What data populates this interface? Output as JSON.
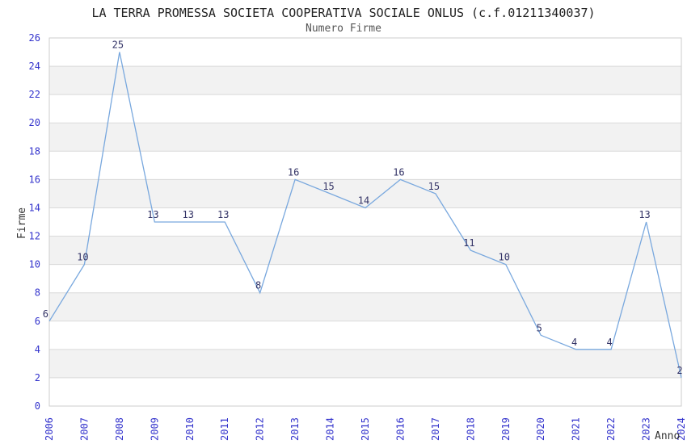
{
  "chart_data": {
    "type": "line",
    "title": "LA TERRA PROMESSA SOCIETA COOPERATIVA SOCIALE ONLUS (c.f.01211340037)",
    "subtitle": "Numero Firme",
    "xlabel": "Anno",
    "ylabel": "Firme",
    "categories": [
      "2006",
      "2007",
      "2008",
      "2009",
      "2010",
      "2011",
      "2012",
      "2013",
      "2014",
      "2015",
      "2016",
      "2017",
      "2018",
      "2019",
      "2020",
      "2021",
      "2022",
      "2023",
      "2024"
    ],
    "values": [
      6,
      10,
      25,
      13,
      13,
      13,
      8,
      16,
      15,
      14,
      16,
      15,
      11,
      10,
      5,
      4,
      4,
      13,
      2
    ],
    "yticks": [
      0,
      2,
      4,
      6,
      8,
      10,
      12,
      14,
      16,
      18,
      20,
      22,
      24,
      26
    ],
    "ylim": [
      0,
      26
    ],
    "grid": "horizontal",
    "banding": "alternating-2-unit-rows",
    "legend_position": "none",
    "markers": "none",
    "colors": {
      "line": "#79A8DE",
      "tick_labels": "#3333CC",
      "point_labels": "#333366",
      "band": "#F2F2F2",
      "gridline": "#D9D9D9",
      "border": "#CCCCCC",
      "title": "#222222",
      "subtitle": "#555555",
      "axis_titles": "#333333",
      "background": "#FFFFFF"
    }
  }
}
